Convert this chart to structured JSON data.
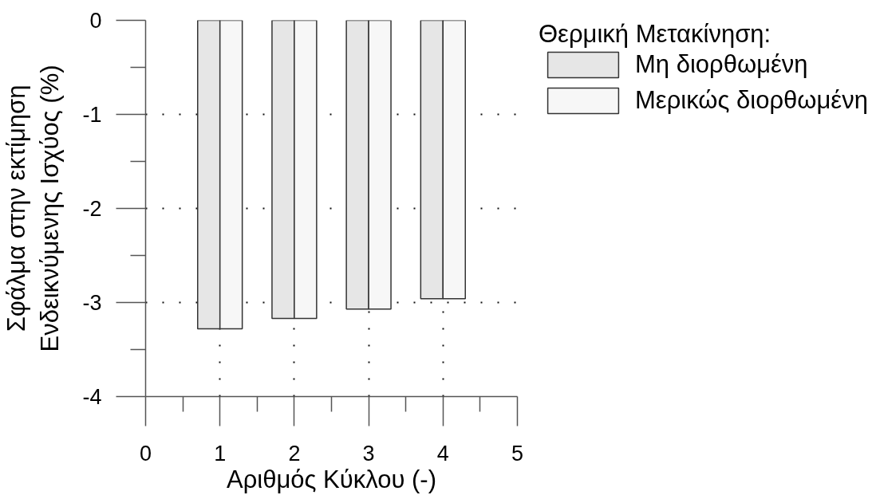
{
  "chart_data": {
    "type": "bar",
    "xlabel": "Αριθμός Κύκλου (-)",
    "ylabel": "Σφάλμα στην εκτίμηση\nΕνδεικνύμενης Ισχύος (%)",
    "legend_title": "Θερμική Μετακίνηση:",
    "x": [
      1,
      2,
      3,
      4
    ],
    "series": [
      {
        "name": "Μη διορθωμένη",
        "color": "#e6e6e6",
        "values": [
          -3.28,
          -3.17,
          -3.07,
          -2.96
        ]
      },
      {
        "name": "Μερικώς διορθωμένη",
        "color": "#f7f7f7",
        "values": [
          -3.28,
          -3.17,
          -3.07,
          -2.96
        ]
      }
    ],
    "xlim": [
      0,
      5
    ],
    "xticks": [
      0,
      1,
      2,
      3,
      4,
      5
    ],
    "ylim": [
      -4,
      0
    ],
    "yticks": [
      -4,
      -3,
      -2,
      -1,
      0
    ],
    "grid": true,
    "legend": "top right"
  }
}
